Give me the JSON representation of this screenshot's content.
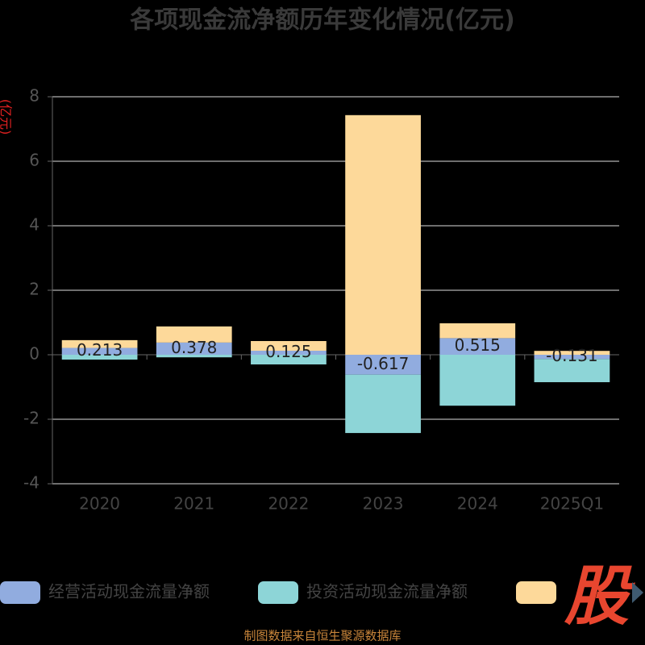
{
  "chart_data": {
    "type": "stacked-bar",
    "title": "各项现金流净额历年变化情况(亿元)",
    "y_axis_label": "(亿元)",
    "categories": [
      "2020",
      "2021",
      "2022",
      "2023",
      "2024",
      "2025Q1"
    ],
    "series": [
      {
        "name": "经营活动现金流量净额",
        "color": "#91acdf",
        "values": [
          0.213,
          0.378,
          0.125,
          -0.617,
          0.515,
          -0.131
        ],
        "labels": true
      },
      {
        "name": "投资活动现金流量净额",
        "color": "#8dd5d7",
        "values": [
          -0.15,
          -0.08,
          -0.3,
          -1.81,
          -1.58,
          -0.72
        ]
      },
      {
        "name": null,
        "color": "#fdd99a",
        "values": [
          0.24,
          0.5,
          0.3,
          7.43,
          0.46,
          0.12
        ]
      }
    ],
    "ylim": [
      -4,
      8
    ],
    "yticks": [
      -4,
      -2,
      0,
      2,
      4,
      6,
      8
    ],
    "grid": true,
    "source": "制图数据来自恒生聚源数据库",
    "logo": "股"
  }
}
